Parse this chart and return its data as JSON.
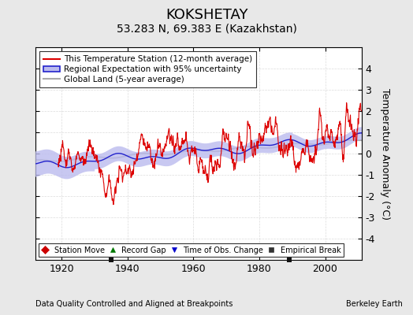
{
  "title": "KOKSHETAY",
  "subtitle": "53.283 N, 69.383 E (Kazakhstan)",
  "xlabel_left": "Data Quality Controlled and Aligned at Breakpoints",
  "xlabel_right": "Berkeley Earth",
  "ylabel": "Temperature Anomaly (°C)",
  "ylim": [
    -5,
    5
  ],
  "xlim": [
    1912,
    2011
  ],
  "yticks": [
    -4,
    -3,
    -2,
    -1,
    0,
    1,
    2,
    3,
    4
  ],
  "xticks": [
    1920,
    1940,
    1960,
    1980,
    2000
  ],
  "background_color": "#e8e8e8",
  "plot_bg_color": "#ffffff",
  "grid_color": "#cccccc",
  "station_line_color": "#dd0000",
  "regional_line_color": "#2222cc",
  "regional_fill_color": "#bbbbee",
  "global_line_color": "#aaaaaa",
  "legend_items": [
    {
      "label": "This Temperature Station (12-month average)",
      "color": "#dd0000"
    },
    {
      "label": "Regional Expectation with 95% uncertainty",
      "color": "#2222cc",
      "fill": "#bbbbee"
    },
    {
      "label": "Global Land (5-year average)",
      "color": "#aaaaaa"
    }
  ],
  "bottom_legend": [
    {
      "label": "Station Move",
      "marker": "D",
      "color": "#cc0000"
    },
    {
      "label": "Record Gap",
      "marker": "^",
      "color": "#007700"
    },
    {
      "label": "Time of Obs. Change",
      "marker": "v",
      "color": "#0000cc"
    },
    {
      "label": "Empirical Break",
      "marker": "s",
      "color": "#333333"
    }
  ],
  "empirical_breaks": [
    1935,
    1989
  ],
  "station_start": 1919,
  "title_fontsize": 13,
  "subtitle_fontsize": 10,
  "tick_fontsize": 9,
  "label_fontsize": 8
}
